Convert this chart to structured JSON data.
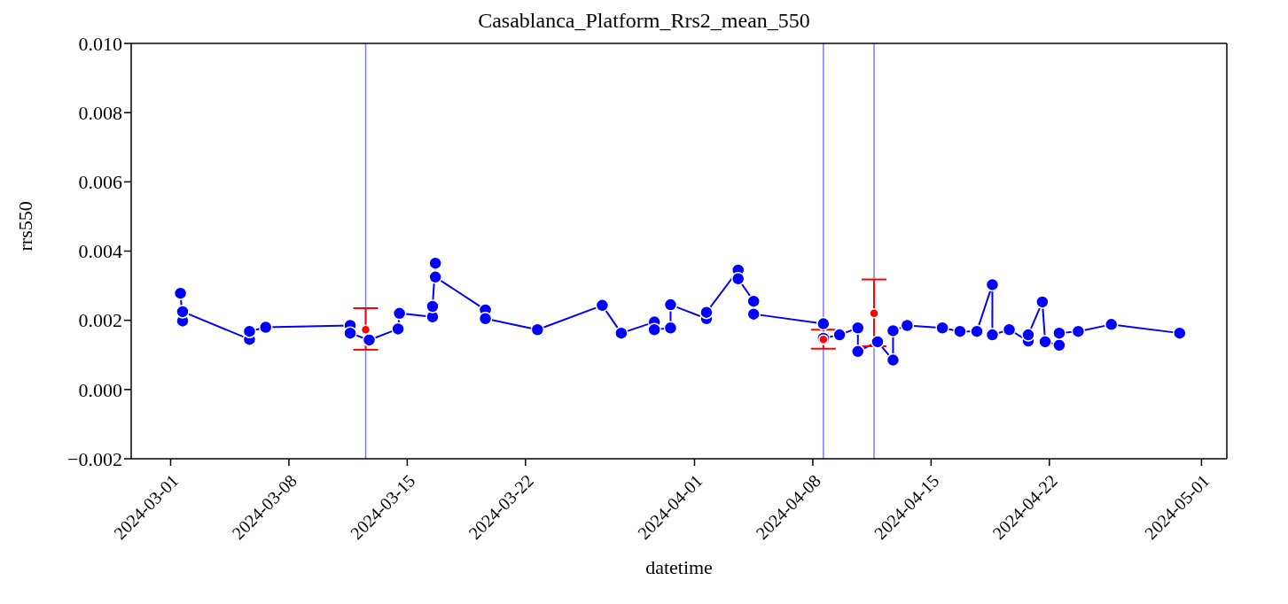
{
  "chart_data": {
    "type": "line",
    "title": "Casablanca_Platform_Rrs2_mean_550",
    "xlabel": "datetime",
    "ylabel": "rrs550",
    "marker": "circle",
    "line_style": "solid",
    "xlim": [
      "2024-02-27T16:00",
      "2024-05-02T12:00"
    ],
    "xticks": [
      "2024-03-01",
      "2024-03-08",
      "2024-03-15",
      "2024-03-22",
      "2024-04-01",
      "2024-04-08",
      "2024-04-15",
      "2024-04-22",
      "2024-05-01"
    ],
    "ylim": [
      -0.002,
      0.01
    ],
    "yticks": [
      {
        "value": -0.002,
        "label": "−0.002"
      },
      {
        "value": 0,
        "label": "0.000"
      },
      0.002,
      0.004,
      0.006,
      0.008,
      {
        "value": 0.01,
        "label": "0.010"
      }
    ],
    "ref_lines": [
      {
        "axis": "x",
        "value": "2024-03-12T13:00",
        "color": "#7b7bff"
      },
      {
        "axis": "x",
        "value": "2024-04-08T15:00",
        "color": "#7b7bff"
      },
      {
        "axis": "x",
        "value": "2024-04-11T15:00",
        "color": "#7b7bff"
      }
    ],
    "series": [
      {
        "color": "#0000ff",
        "x": [
          "2024-03-01T14:00",
          "2024-03-01T17:00",
          "2024-03-01T17:00",
          "2024-03-05T16:00",
          "2024-03-05T16:00",
          "2024-03-06T15:00",
          "2024-03-11T15:00",
          "2024-03-11T15:00",
          "2024-03-12T18:00",
          "2024-03-14T11:00",
          "2024-03-14T13:00",
          "2024-03-16T12:00",
          "2024-03-16T12:00",
          "2024-03-16T16:00",
          "2024-03-16T16:00",
          "2024-03-19T15:00",
          "2024-03-19T15:00",
          "2024-03-22T17:00",
          "2024-03-26T13:00",
          "2024-03-27T16:00",
          "2024-03-29T15:00",
          "2024-03-29T15:00",
          "2024-03-30T14:00",
          "2024-03-30T14:00",
          "2024-04-01T17:00",
          "2024-04-01T17:00",
          "2024-04-03T14:00",
          "2024-04-03T14:00",
          "2024-04-04T12:00",
          "2024-04-04T12:00",
          "2024-04-08T15:00",
          "2024-04-08T15:00",
          "2024-04-09T14:00",
          "2024-04-10T16:00",
          "2024-04-10T16:00",
          "2024-04-11T20:00",
          "2024-04-12T18:00",
          "2024-04-12T18:00",
          "2024-04-13T14:00",
          "2024-04-15T16:00",
          "2024-04-16T17:00",
          "2024-04-17T17:00",
          "2024-04-18T15:00",
          "2024-04-18T15:00",
          "2024-04-19T15:00",
          "2024-04-20T18:00",
          "2024-04-20T18:00",
          "2024-04-21T14:00",
          "2024-04-21T18:00",
          "2024-04-22T14:00",
          "2024-04-22T14:00",
          "2024-04-23T17:00",
          "2024-04-25T16:00",
          "2024-04-29T17:00"
        ],
        "values": [
          0.00278,
          0.00198,
          0.00225,
          0.00145,
          0.00168,
          0.0018,
          0.00185,
          0.00163,
          0.00143,
          0.00175,
          0.0022,
          0.0021,
          0.0024,
          0.00365,
          0.00325,
          0.0023,
          0.00205,
          0.00173,
          0.00243,
          0.00163,
          0.00195,
          0.00173,
          0.00178,
          0.00245,
          0.00205,
          0.00223,
          0.00345,
          0.0032,
          0.00255,
          0.00218,
          0.0019,
          0.00148,
          0.00158,
          0.00178,
          0.0011,
          0.00138,
          0.00085,
          0.0017,
          0.00185,
          0.00178,
          0.00168,
          0.00168,
          0.00303,
          0.00158,
          0.00173,
          0.0014,
          0.00158,
          0.00253,
          0.00138,
          0.00128,
          0.00163,
          0.00168,
          0.00188,
          0.00163
        ]
      },
      {
        "type": "scatter",
        "color": "#ff0000",
        "x": [
          "2024-03-12T13:00",
          "2024-04-08T15:00",
          "2024-04-11T15:00"
        ],
        "values": [
          0.00173,
          0.00145,
          0.0022
        ],
        "errors": [
          [
            0.00115,
            0.00235
          ],
          [
            0.00118,
            0.00173
          ],
          [
            0.00125,
            0.00318
          ]
        ]
      }
    ]
  }
}
